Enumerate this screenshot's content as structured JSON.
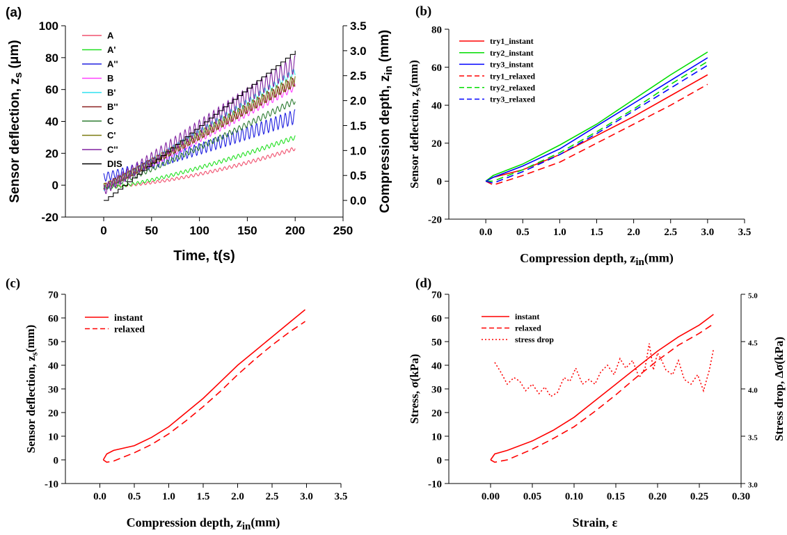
{
  "figure": {
    "panels": [
      {
        "id": "a",
        "label": "(a)"
      },
      {
        "id": "b",
        "label": "(b)"
      },
      {
        "id": "c",
        "label": "(c)"
      },
      {
        "id": "d",
        "label": "(d)"
      }
    ]
  },
  "chart_data": [
    {
      "id": "a",
      "type": "line",
      "label": "(a)",
      "title": "",
      "xlabel": "Time, t(s)",
      "ylabel": "Sensor deflection, z_s (μm)",
      "y2label": "Compression depth, z_in (mm)",
      "xlim": [
        -40,
        250
      ],
      "ylim": [
        -20,
        100
      ],
      "y2lim": [
        -0.33333,
        3.5
      ],
      "xticks": [
        0,
        50,
        100,
        150,
        200,
        250
      ],
      "yticks": [
        -20,
        0,
        20,
        40,
        60,
        80,
        100
      ],
      "y2ticks": [
        0.0,
        0.5,
        1.0,
        1.5,
        2.0,
        2.5,
        3.0,
        3.5
      ],
      "legend_position": "top-left",
      "x_range": [
        0,
        200
      ],
      "series": [
        {
          "name": "A",
          "color": "#f0506e",
          "start": -1,
          "end": 23,
          "curve": 1.6,
          "oscillation": 1.2
        },
        {
          "name": "A'",
          "color": "#20e020",
          "start": -2,
          "end": 30,
          "curve": 1.3,
          "oscillation": 1.4
        },
        {
          "name": "A''",
          "color": "#2020e0",
          "start": 5,
          "end": 43,
          "curve": 1.1,
          "oscillation": 4.5
        },
        {
          "name": "B",
          "color": "#ff40ff",
          "start": -2,
          "end": 62,
          "curve": 1.05,
          "oscillation": 2.5
        },
        {
          "name": "B'",
          "color": "#30e0f0",
          "start": -2,
          "end": 71,
          "curve": 1.05,
          "oscillation": 2.5
        },
        {
          "name": "B''",
          "color": "#8b2020",
          "start": -1,
          "end": 65,
          "curve": 1.05,
          "oscillation": 3
        },
        {
          "name": "C",
          "color": "#2e7d32",
          "start": -2,
          "end": 53,
          "curve": 1.1,
          "oscillation": 2
        },
        {
          "name": "C'",
          "color": "#7a7a10",
          "start": -1,
          "end": 66,
          "curve": 1.05,
          "oscillation": 3.5
        },
        {
          "name": "C''",
          "color": "#8020a0",
          "start": -3,
          "end": 76,
          "curve": 1.0,
          "oscillation": 5.5
        },
        {
          "name": "DIS",
          "color": "#000000",
          "axis": "right",
          "step_seconds": 5,
          "step_size": 0.075,
          "end": 3.0
        }
      ]
    },
    {
      "id": "b",
      "type": "line",
      "label": "(b)",
      "title": "",
      "xlabel": "Compression depth, z_in(mm)",
      "ylabel": "Sensor deflection, z_s(mm)",
      "xlim": [
        -0.5,
        3.5
      ],
      "ylim": [
        -20,
        80
      ],
      "xticks": [
        0.0,
        0.5,
        1.0,
        1.5,
        2.0,
        2.5,
        3.0,
        3.5
      ],
      "yticks": [
        -20,
        0,
        20,
        40,
        60,
        80
      ],
      "legend_position": "top-left",
      "x": [
        0.0,
        0.1,
        0.5,
        1.0,
        1.5,
        2.0,
        2.5,
        3.0
      ],
      "series": [
        {
          "name": "try1_instant",
          "color": "#ff0000",
          "dash": "solid",
          "values": [
            0,
            2,
            6,
            14,
            24,
            34,
            45,
            56
          ]
        },
        {
          "name": "try2_instant",
          "color": "#00dd00",
          "dash": "solid",
          "values": [
            0,
            3,
            9,
            19,
            30,
            43,
            56,
            68
          ]
        },
        {
          "name": "try3_instant",
          "color": "#0000ff",
          "dash": "solid",
          "values": [
            0,
            2,
            8,
            17,
            29,
            41,
            53,
            65
          ]
        },
        {
          "name": "try1_relaxed",
          "color": "#ff0000",
          "dash": "dashed",
          "values": [
            0,
            -2,
            3,
            10,
            20,
            30,
            40,
            51
          ]
        },
        {
          "name": "try2_relaxed",
          "color": "#00dd00",
          "dash": "dashed",
          "values": [
            0,
            0,
            6,
            15,
            26,
            38,
            51,
            63
          ]
        },
        {
          "name": "try3_relaxed",
          "color": "#0000ff",
          "dash": "dashed",
          "values": [
            0,
            -1,
            5,
            14,
            25,
            37,
            49,
            61
          ]
        }
      ]
    },
    {
      "id": "c",
      "type": "line",
      "label": "(c)",
      "title": "",
      "xlabel": "Compression depth, z_in(mm)",
      "ylabel": "Sensor deflection, z_s(mm)",
      "xlim": [
        -0.5,
        3.5
      ],
      "ylim": [
        -10,
        70
      ],
      "xticks": [
        0.0,
        0.5,
        1.0,
        1.5,
        2.0,
        2.5,
        3.0,
        3.5
      ],
      "yticks": [
        -10,
        0,
        10,
        20,
        30,
        40,
        50,
        60,
        70
      ],
      "legend_position": "top-left",
      "x": [
        0.05,
        0.1,
        0.2,
        0.5,
        0.75,
        1.0,
        1.25,
        1.5,
        1.75,
        2.0,
        2.25,
        2.5,
        2.75,
        2.98
      ],
      "series": [
        {
          "name": "instant",
          "color": "#ff0000",
          "dash": "solid",
          "values": [
            0,
            2.5,
            4,
            6,
            9.5,
            14,
            20,
            26,
            33,
            40,
            46,
            52,
            58,
            63.5
          ]
        },
        {
          "name": "relaxed",
          "color": "#ff0000",
          "dash": "dashed",
          "values": [
            0,
            -1,
            -0.5,
            3,
            6.5,
            11,
            16.5,
            22.5,
            29,
            36,
            42.5,
            48.5,
            54,
            58.5
          ]
        }
      ]
    },
    {
      "id": "d",
      "type": "line",
      "label": "(d)",
      "title": "",
      "xlabel": "Strain, ε",
      "ylabel": "Stress, σ(kPa)",
      "y2label": "Stress drop, Δσ(kPa)",
      "xlim": [
        -0.05,
        0.3
      ],
      "ylim": [
        -10,
        70
      ],
      "y2lim": [
        3.0,
        5.0
      ],
      "xticks": [
        0.0,
        0.05,
        0.1,
        0.15,
        0.2,
        0.25,
        0.3
      ],
      "yticks": [
        -10,
        0,
        10,
        20,
        30,
        40,
        50,
        60,
        70
      ],
      "y2ticks": [
        3.0,
        3.5,
        4.0,
        4.5,
        5.0
      ],
      "legend_position": "top-left",
      "series": [
        {
          "name": "instant",
          "color": "#ff0000",
          "dash": "solid",
          "x": [
            0.0,
            0.005,
            0.02,
            0.05,
            0.075,
            0.1,
            0.125,
            0.15,
            0.175,
            0.2,
            0.225,
            0.25,
            0.267
          ],
          "values": [
            0,
            2.5,
            4,
            8,
            12.5,
            18,
            25,
            32,
            39,
            46,
            52,
            57,
            61.5
          ]
        },
        {
          "name": "relaxed",
          "color": "#ff0000",
          "dash": "dashed",
          "x": [
            0.0,
            0.005,
            0.02,
            0.05,
            0.075,
            0.1,
            0.125,
            0.15,
            0.175,
            0.2,
            0.225,
            0.25,
            0.267
          ],
          "values": [
            0,
            -1,
            0,
            4.5,
            9,
            14,
            20.5,
            27.5,
            35,
            42,
            48.5,
            53.5,
            57.5
          ]
        },
        {
          "name": "stress drop",
          "color": "#ff0000",
          "dash": "dotted",
          "axis": "right",
          "x": [
            0.005,
            0.012,
            0.02,
            0.028,
            0.035,
            0.042,
            0.05,
            0.058,
            0.065,
            0.072,
            0.08,
            0.088,
            0.095,
            0.102,
            0.11,
            0.118,
            0.125,
            0.132,
            0.14,
            0.148,
            0.155,
            0.162,
            0.17,
            0.178,
            0.185,
            0.19,
            0.195,
            0.2,
            0.205,
            0.21,
            0.218,
            0.225,
            0.232,
            0.24,
            0.248,
            0.255,
            0.262,
            0.267
          ],
          "values": [
            4.28,
            4.18,
            4.05,
            4.12,
            4.08,
            3.98,
            4.05,
            3.95,
            4.02,
            3.92,
            3.96,
            4.12,
            4.08,
            4.22,
            4.05,
            4.1,
            4.05,
            4.18,
            4.25,
            4.15,
            4.32,
            4.22,
            4.3,
            4.12,
            4.22,
            4.48,
            4.2,
            4.38,
            4.3,
            4.2,
            4.15,
            4.3,
            4.1,
            4.05,
            4.15,
            3.98,
            4.2,
            4.42
          ]
        }
      ]
    }
  ]
}
